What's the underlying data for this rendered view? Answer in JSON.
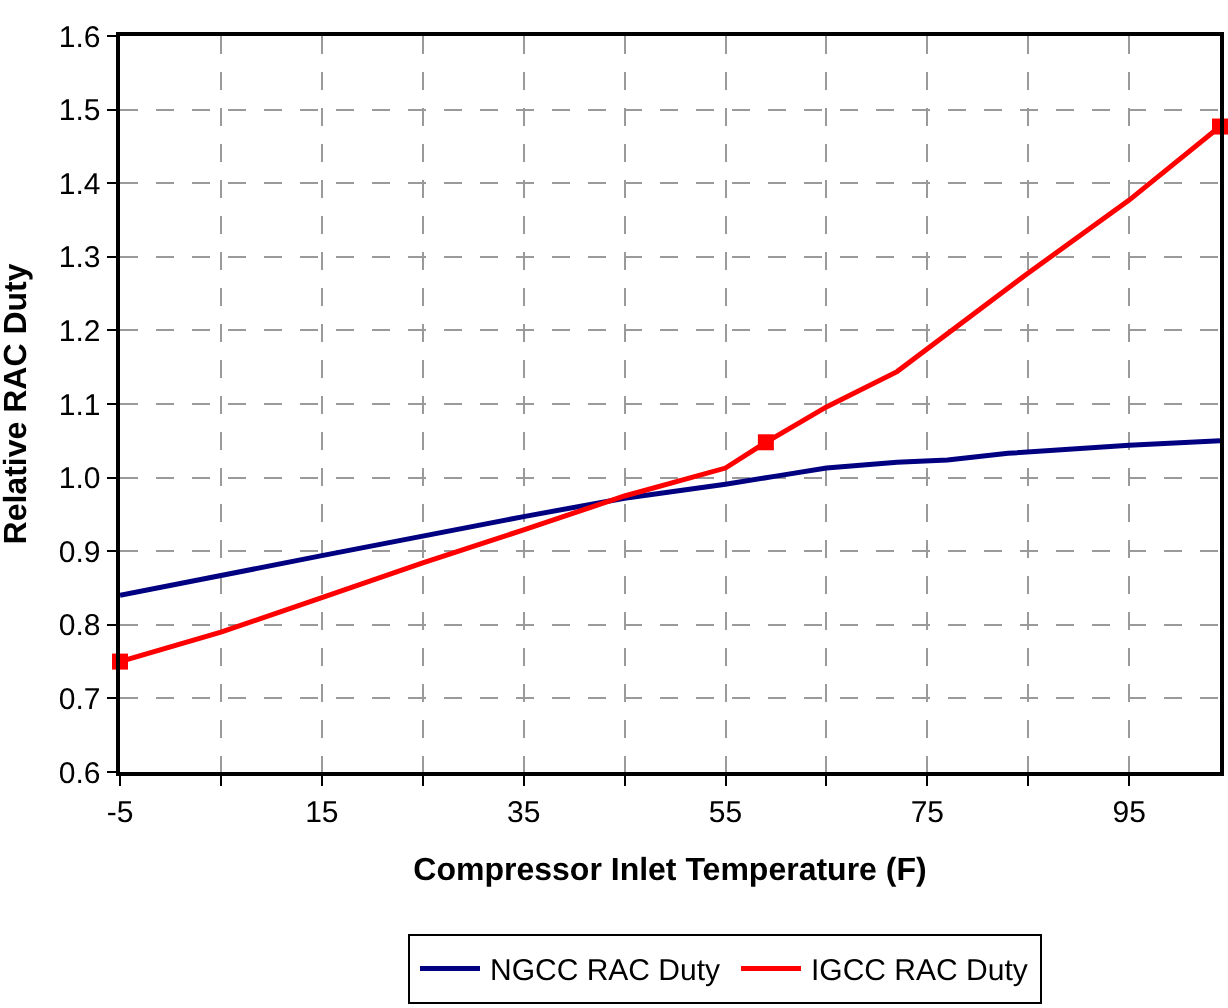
{
  "chart_data": {
    "type": "line",
    "xlabel": "Compressor Inlet Temperature (F)",
    "ylabel": "Relative RAC Duty",
    "xlim": [
      -5,
      104
    ],
    "xticks": [
      -5,
      {
        "value": 5,
        "label": null
      },
      15,
      {
        "value": 25,
        "label": null
      },
      35,
      {
        "value": 45,
        "label": null
      },
      55,
      {
        "value": 65,
        "label": null
      },
      75,
      {
        "value": 85,
        "label": null
      },
      95
    ],
    "ylim": [
      0.6,
      1.6
    ],
    "yticks": [
      0.6,
      0.7,
      0.8,
      0.9,
      {
        "value": 1,
        "label": "1.0"
      },
      1.1,
      1.2,
      1.3,
      1.4,
      1.5,
      1.6
    ],
    "grid": true,
    "legend": "bottom",
    "line_style": "solid",
    "series": [
      {
        "name": "NGCC RAC Duty",
        "color": "#000080",
        "marker": "none",
        "x": [
          -5,
          15,
          35,
          45,
          55,
          60,
          65,
          72,
          77,
          83,
          95,
          104
        ],
        "values": [
          0.84,
          0.894,
          0.947,
          0.972,
          0.991,
          1.002,
          1.013,
          1.021,
          1.024,
          1.033,
          1.044,
          1.05
        ]
      },
      {
        "name": "IGCC RAC Duty",
        "color": "#ff0000",
        "marker": "none",
        "x": [
          -5,
          5,
          15,
          25,
          35,
          45,
          55,
          59,
          65,
          72,
          85,
          95,
          104
        ],
        "values": [
          0.75,
          0.79,
          0.837,
          0.884,
          0.929,
          0.975,
          1.013,
          1.048,
          1.096,
          1.144,
          1.278,
          1.377,
          1.477
        ]
      },
      {
        "type": "scatter",
        "color": "#ff0000",
        "marker": "square",
        "x": [
          -5,
          59,
          104
        ],
        "values": [
          0.75,
          1.048,
          1.477
        ]
      }
    ]
  }
}
